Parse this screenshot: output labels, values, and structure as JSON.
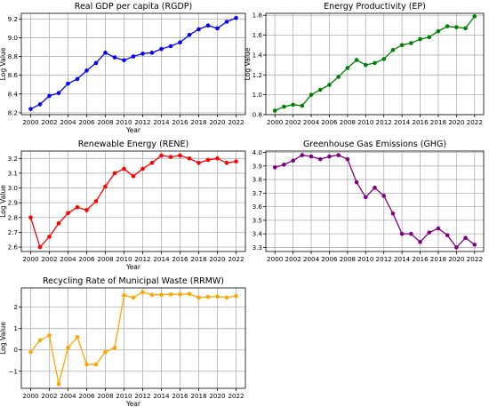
{
  "chart_data": [
    {
      "type": "line",
      "title": "Real GDP per capita (RGDP)",
      "xlabel": "Year",
      "ylabel": "Log Value",
      "color": "#0000ff",
      "grid": true,
      "xlim": [
        1999,
        2023
      ],
      "ylim": [
        8.18,
        9.26
      ],
      "x_ticks": [
        2000,
        2002,
        2004,
        2006,
        2008,
        2010,
        2012,
        2014,
        2016,
        2018,
        2020,
        2022
      ],
      "y_ticks": [
        8.2,
        8.4,
        8.6,
        8.8,
        9.0,
        9.2
      ],
      "y_tick_labels": [
        "8.2",
        "8.4",
        "8.6",
        "8.8",
        "9.0",
        "9.2"
      ],
      "x": [
        2000,
        2001,
        2002,
        2003,
        2004,
        2005,
        2006,
        2007,
        2008,
        2009,
        2010,
        2011,
        2012,
        2013,
        2014,
        2015,
        2016,
        2017,
        2018,
        2019,
        2020,
        2021,
        2022
      ],
      "values": [
        8.24,
        8.29,
        8.38,
        8.41,
        8.51,
        8.56,
        8.65,
        8.73,
        8.84,
        8.79,
        8.76,
        8.8,
        8.83,
        8.84,
        8.88,
        8.91,
        8.95,
        9.03,
        9.09,
        9.13,
        9.1,
        9.17,
        9.21
      ]
    },
    {
      "type": "line",
      "title": "Energy Productivity (EP)",
      "xlabel": "",
      "ylabel": "Log Value",
      "color": "#008000",
      "grid": true,
      "xlim": [
        1999,
        2023
      ],
      "ylim": [
        0.8,
        1.82
      ],
      "x_ticks": [
        2000,
        2002,
        2004,
        2006,
        2008,
        2010,
        2012,
        2014,
        2016,
        2018,
        2020,
        2022
      ],
      "y_ticks": [
        0.8,
        1.0,
        1.2,
        1.4,
        1.6,
        1.8
      ],
      "y_tick_labels": [
        "0.8",
        "1.0",
        "1.2",
        "1.4",
        "1.6",
        "1.8"
      ],
      "x": [
        2000,
        2001,
        2002,
        2003,
        2004,
        2005,
        2006,
        2007,
        2008,
        2009,
        2010,
        2011,
        2012,
        2013,
        2014,
        2015,
        2016,
        2017,
        2018,
        2019,
        2020,
        2021,
        2022
      ],
      "values": [
        0.84,
        0.88,
        0.9,
        0.89,
        1.0,
        1.05,
        1.1,
        1.18,
        1.27,
        1.35,
        1.3,
        1.32,
        1.36,
        1.45,
        1.5,
        1.52,
        1.56,
        1.58,
        1.64,
        1.69,
        1.68,
        1.67,
        1.79
      ]
    },
    {
      "type": "line",
      "title": "Renewable Energy (RENE)",
      "xlabel": "Year",
      "ylabel": "Log Value",
      "color": "#ff0000",
      "grid": true,
      "xlim": [
        1999,
        2023
      ],
      "ylim": [
        2.57,
        3.25
      ],
      "x_ticks": [
        2000,
        2002,
        2004,
        2006,
        2008,
        2010,
        2012,
        2014,
        2016,
        2018,
        2020,
        2022
      ],
      "y_ticks": [
        2.6,
        2.7,
        2.8,
        2.9,
        3.0,
        3.1,
        3.2
      ],
      "y_tick_labels": [
        "2.6",
        "2.7",
        "2.8",
        "2.9",
        "3.0",
        "3.1",
        "3.2"
      ],
      "x": [
        2000,
        2001,
        2002,
        2003,
        2004,
        2005,
        2006,
        2007,
        2008,
        2009,
        2010,
        2011,
        2012,
        2013,
        2014,
        2015,
        2016,
        2017,
        2018,
        2019,
        2020,
        2021,
        2022
      ],
      "values": [
        2.8,
        2.6,
        2.67,
        2.76,
        2.83,
        2.87,
        2.85,
        2.91,
        3.01,
        3.1,
        3.13,
        3.08,
        3.13,
        3.17,
        3.22,
        3.21,
        3.22,
        3.2,
        3.17,
        3.19,
        3.2,
        3.17,
        3.18
      ]
    },
    {
      "type": "line",
      "title": "Greenhouse Gas Emissions (GHG)",
      "xlabel": "",
      "ylabel": "",
      "color": "#800080",
      "grid": true,
      "xlim": [
        1999,
        2023
      ],
      "ylim": [
        3.27,
        4.01
      ],
      "x_ticks": [
        2000,
        2002,
        2004,
        2006,
        2008,
        2010,
        2012,
        2014,
        2016,
        2018,
        2020,
        2022
      ],
      "y_ticks": [
        3.3,
        3.4,
        3.5,
        3.6,
        3.7,
        3.8,
        3.9,
        4.0
      ],
      "y_tick_labels": [
        "3.3",
        "3.4",
        "3.5",
        "3.6",
        "3.7",
        "3.8",
        "3.9",
        "4.0"
      ],
      "x": [
        2000,
        2001,
        2002,
        2003,
        2004,
        2005,
        2006,
        2007,
        2008,
        2009,
        2010,
        2011,
        2012,
        2013,
        2014,
        2015,
        2016,
        2017,
        2018,
        2019,
        2020,
        2021,
        2022
      ],
      "values": [
        3.89,
        3.91,
        3.94,
        3.98,
        3.97,
        3.95,
        3.97,
        3.98,
        3.95,
        3.78,
        3.67,
        3.74,
        3.68,
        3.55,
        3.4,
        3.4,
        3.34,
        3.41,
        3.44,
        3.39,
        3.3,
        3.37,
        3.32
      ]
    },
    {
      "type": "line",
      "title": "Recycling Rate of Municipal Waste (RRMW)",
      "xlabel": "Year",
      "ylabel": "Log Value",
      "color": "#ffa500",
      "grid": true,
      "xlim": [
        1999,
        2023
      ],
      "ylim": [
        -1.8,
        2.9
      ],
      "x_ticks": [
        2000,
        2002,
        2004,
        2006,
        2008,
        2010,
        2012,
        2014,
        2016,
        2018,
        2020,
        2022
      ],
      "y_ticks": [
        -1,
        0,
        1,
        2
      ],
      "y_tick_labels": [
        "−1",
        "0",
        "1",
        "2"
      ],
      "x": [
        2000,
        2001,
        2002,
        2003,
        2004,
        2005,
        2006,
        2007,
        2008,
        2009,
        2010,
        2011,
        2012,
        2013,
        2014,
        2015,
        2016,
        2017,
        2018,
        2019,
        2020,
        2021,
        2022
      ],
      "values": [
        -0.1,
        0.45,
        0.68,
        -1.6,
        0.1,
        0.6,
        -0.68,
        -0.68,
        -0.1,
        0.1,
        2.55,
        2.45,
        2.7,
        2.58,
        2.58,
        2.6,
        2.6,
        2.62,
        2.45,
        2.48,
        2.5,
        2.45,
        2.52
      ]
    }
  ]
}
